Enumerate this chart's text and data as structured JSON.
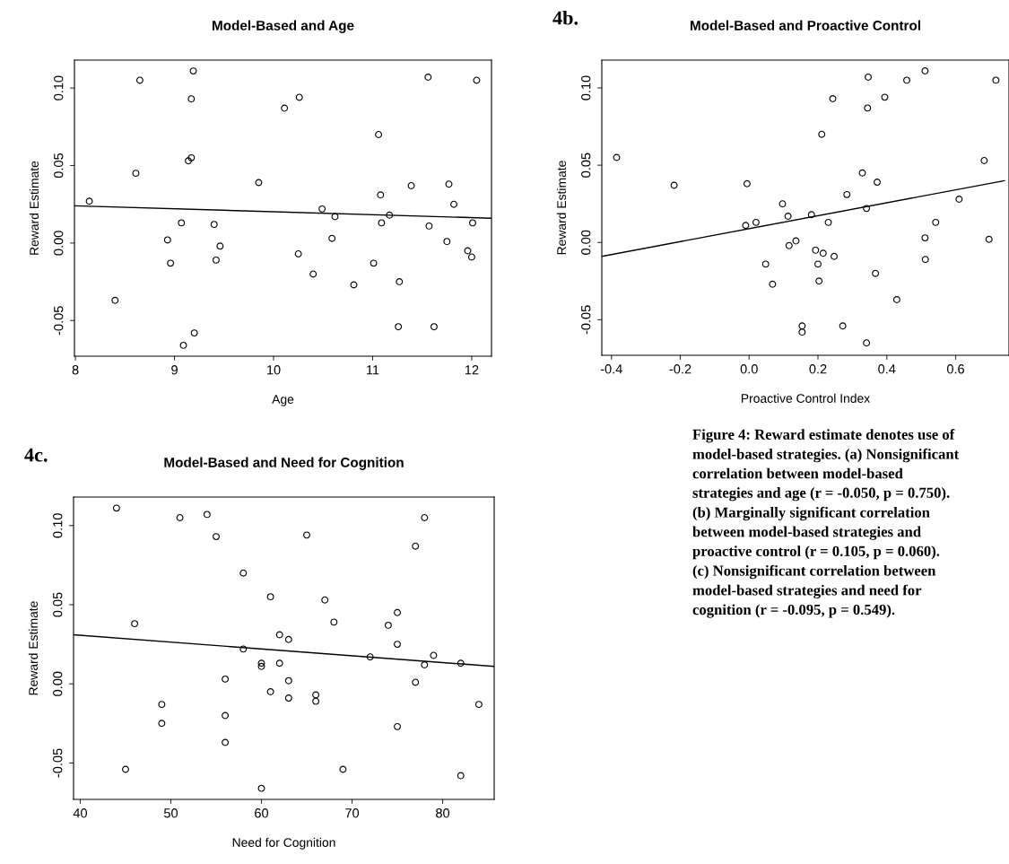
{
  "chart_data": [
    {
      "type": "scatter",
      "title": "Model-Based and Age",
      "xlabel": "Age",
      "ylabel": "Reward Estimate",
      "marker": "circle",
      "xlim": [
        7.99,
        12.2
      ],
      "ylim": [
        -0.073,
        0.118
      ],
      "xticks": [
        8,
        9,
        10,
        11,
        12
      ],
      "yticks": [
        {
          "value": -0.05,
          "label": "-0.05"
        },
        {
          "value": 0,
          "label": "0.00"
        },
        {
          "value": 0.05,
          "label": "0.05"
        },
        {
          "value": 0.1,
          "label": "0.10"
        }
      ],
      "series": [
        {
          "type": "scatter",
          "color": "#000000",
          "x": [
            8.14,
            8.4,
            8.61,
            8.65,
            8.93,
            8.96,
            9.07,
            9.09,
            9.14,
            9.17,
            9.17,
            9.19,
            9.2,
            9.4,
            9.42,
            9.46,
            9.85,
            10.11,
            10.25,
            10.26,
            10.4,
            10.49,
            10.59,
            10.62,
            10.81,
            11.01,
            11.06,
            11.08,
            11.09,
            11.17,
            11.26,
            11.27,
            11.39,
            11.56,
            11.57,
            11.62,
            11.75,
            11.77,
            11.82,
            11.96,
            12.0,
            12.01,
            12.05
          ],
          "values": [
            0.027,
            -0.037,
            0.045,
            0.105,
            0.002,
            -0.013,
            0.013,
            -0.066,
            0.053,
            0.055,
            0.093,
            0.111,
            -0.058,
            0.012,
            -0.011,
            -0.002,
            0.039,
            0.087,
            -0.007,
            0.094,
            -0.02,
            0.022,
            0.003,
            0.017,
            -0.027,
            -0.013,
            0.07,
            0.031,
            0.013,
            0.018,
            -0.054,
            -0.025,
            0.037,
            0.107,
            0.011,
            -0.054,
            0.001,
            0.038,
            0.025,
            -0.005,
            -0.009,
            0.013,
            0.105
          ]
        },
        {
          "type": "line",
          "marker": "none",
          "color": "#000000",
          "x": [
            7.99,
            12.2
          ],
          "values": [
            0.024,
            0.016
          ]
        }
      ]
    },
    {
      "type": "scatter",
      "title": "Model-Based and Proactive Control",
      "xlabel": "Proactive Control Index",
      "ylabel": "Reward Estimate",
      "marker": "circle",
      "annotations": [
        "4b."
      ],
      "xlim": [
        -0.428,
        0.755
      ],
      "ylim": [
        -0.073,
        0.118
      ],
      "xticks": [
        {
          "value": -0.4,
          "label": "-0.4"
        },
        {
          "value": -0.2,
          "label": "-0.2"
        },
        {
          "value": 0,
          "label": "0.0"
        },
        {
          "value": 0.2,
          "label": "0.2"
        },
        {
          "value": 0.4,
          "label": "0.4"
        },
        {
          "value": 0.6,
          "label": "0.6"
        }
      ],
      "yticks": [
        {
          "value": -0.05,
          "label": "-0.05"
        },
        {
          "value": 0,
          "label": "0.00"
        },
        {
          "value": 0.05,
          "label": "0.05"
        },
        {
          "value": 0.1,
          "label": "0.10"
        }
      ],
      "series": [
        {
          "type": "scatter",
          "color": "#000000",
          "x": [
            -0.385,
            -0.218,
            -0.006,
            -0.01,
            0.02,
            0.048,
            0.068,
            0.097,
            0.113,
            0.116,
            0.136,
            0.154,
            0.154,
            0.181,
            0.193,
            0.2,
            0.203,
            0.211,
            0.215,
            0.23,
            0.243,
            0.247,
            0.272,
            0.284,
            0.329,
            0.341,
            0.341,
            0.344,
            0.346,
            0.367,
            0.372,
            0.394,
            0.429,
            0.458,
            0.511,
            0.511,
            0.512,
            0.542,
            0.61,
            0.683,
            0.697,
            0.717
          ],
          "values": [
            0.055,
            0.037,
            0.038,
            0.011,
            0.013,
            -0.014,
            -0.027,
            0.025,
            0.017,
            -0.002,
            0.001,
            -0.054,
            -0.058,
            0.018,
            -0.005,
            -0.014,
            -0.025,
            0.07,
            -0.007,
            0.013,
            0.093,
            -0.009,
            -0.054,
            0.031,
            0.045,
            0.022,
            -0.065,
            0.087,
            0.107,
            -0.02,
            0.039,
            0.094,
            -0.037,
            0.105,
            0.111,
            0.003,
            -0.011,
            0.013,
            0.028,
            0.053,
            0.002,
            0.105
          ]
        },
        {
          "type": "line",
          "marker": "none",
          "color": "#000000",
          "x": [
            -0.428,
            0.742
          ],
          "values": [
            -0.009,
            0.04
          ]
        }
      ]
    },
    {
      "type": "scatter",
      "title": "Model-Based and Need for Cognition",
      "xlabel": "Need for Cognition",
      "ylabel": "Reward Estimate",
      "marker": "circle",
      "annotations": [
        "4c."
      ],
      "xlim": [
        39.26,
        85.69
      ],
      "ylim": [
        -0.073,
        0.118
      ],
      "xticks": [
        40,
        50,
        60,
        70,
        80
      ],
      "yticks": [
        {
          "value": -0.05,
          "label": "-0.05"
        },
        {
          "value": 0,
          "label": "0.00"
        },
        {
          "value": 0.05,
          "label": "0.05"
        },
        {
          "value": 0.1,
          "label": "0.10"
        }
      ],
      "series": [
        {
          "type": "scatter",
          "color": "#000000",
          "x": [
            44,
            45,
            46,
            49,
            49,
            51,
            54,
            55,
            56,
            56,
            56,
            58,
            58,
            60,
            60,
            60,
            61,
            61,
            62,
            62,
            63,
            63,
            63,
            65,
            66,
            66,
            67,
            68,
            69,
            72,
            74,
            75,
            75,
            75,
            77,
            77,
            78,
            78,
            79,
            82,
            82,
            84
          ],
          "values": [
            0.111,
            -0.054,
            0.038,
            -0.013,
            -0.025,
            0.105,
            0.107,
            0.093,
            0.003,
            -0.02,
            -0.037,
            0.07,
            0.022,
            0.013,
            0.011,
            -0.066,
            0.055,
            -0.005,
            0.031,
            0.013,
            0.028,
            0.002,
            -0.009,
            0.094,
            -0.007,
            -0.011,
            0.053,
            0.039,
            -0.054,
            0.017,
            0.037,
            0.045,
            0.025,
            -0.027,
            0.087,
            0.001,
            0.105,
            0.012,
            0.018,
            0.013,
            -0.058,
            -0.013
          ]
        },
        {
          "type": "line",
          "marker": "none",
          "color": "#000000",
          "x": [
            39.26,
            85.69
          ],
          "values": [
            0.031,
            0.011
          ]
        }
      ]
    },
    {
      "type": "other",
      "annotations": [
        "Figure 4: Reward estimate denotes use of\nmodel-based strategies. (a) Nonsignificant\ncorrelation between model-based\nstrategies and age (r = -0.050, p = 0.750).\n(b) Marginally significant correlation\nbetween model-based strategies and\nproactive control (r = 0.105, p = 0.060).\n(c) Nonsignificant correlation between\nmodel-based strategies and need for\ncognition (r = -0.095, p = 0.549)."
      ]
    }
  ]
}
